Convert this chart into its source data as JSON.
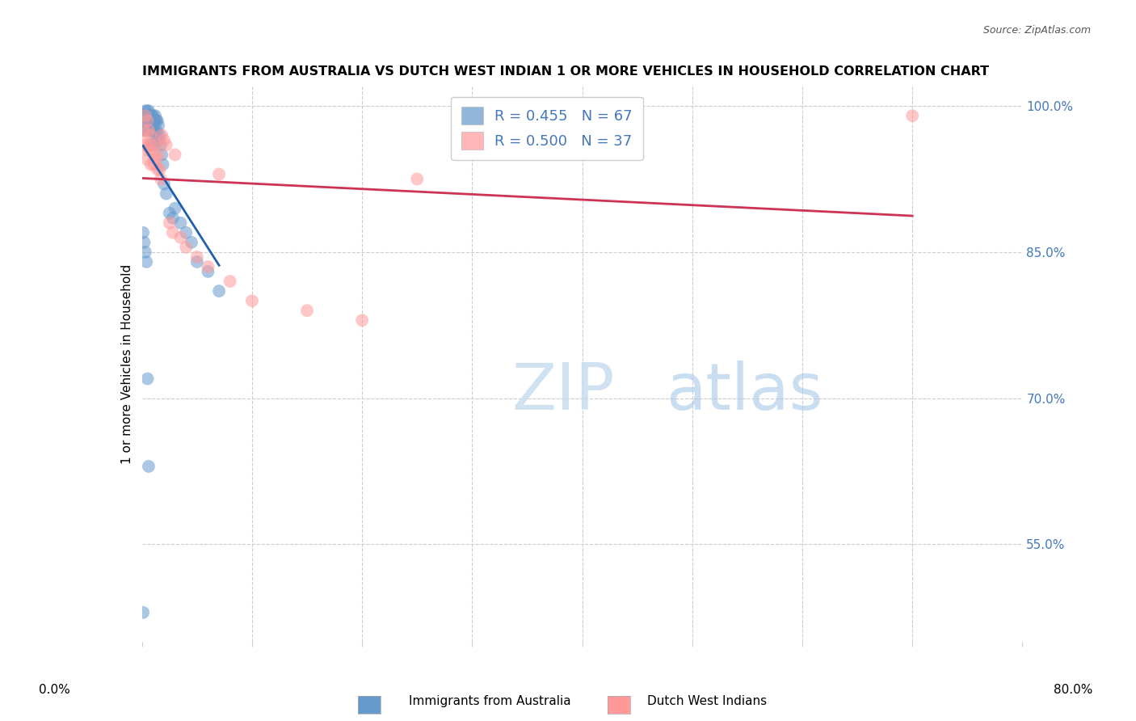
{
  "title": "IMMIGRANTS FROM AUSTRALIA VS DUTCH WEST INDIAN 1 OR MORE VEHICLES IN HOUSEHOLD CORRELATION CHART",
  "source": "Source: ZipAtlas.com",
  "ylabel": "1 or more Vehicles in Household",
  "xlim": [
    0.0,
    0.8
  ],
  "ylim": [
    0.45,
    1.02
  ],
  "yticks": [
    0.55,
    0.7,
    0.85,
    1.0
  ],
  "ytick_labels": [
    "55.0%",
    "70.0%",
    "85.0%",
    "100.0%"
  ],
  "legend1_label": "R = 0.455   N = 67",
  "legend2_label": "R = 0.500   N = 37",
  "blue_color": "#6699CC",
  "pink_color": "#FF9999",
  "blue_line_color": "#1F5FAD",
  "pink_line_color": "#CC3355",
  "australia_x": [
    0.001,
    0.001,
    0.001,
    0.002,
    0.002,
    0.002,
    0.003,
    0.003,
    0.003,
    0.003,
    0.004,
    0.004,
    0.004,
    0.005,
    0.005,
    0.005,
    0.005,
    0.006,
    0.006,
    0.006,
    0.007,
    0.007,
    0.007,
    0.007,
    0.008,
    0.008,
    0.008,
    0.009,
    0.009,
    0.009,
    0.01,
    0.01,
    0.01,
    0.01,
    0.011,
    0.011,
    0.012,
    0.012,
    0.012,
    0.013,
    0.013,
    0.014,
    0.014,
    0.015,
    0.015,
    0.016,
    0.017,
    0.018,
    0.019,
    0.02,
    0.022,
    0.025,
    0.028,
    0.03,
    0.035,
    0.04,
    0.045,
    0.05,
    0.06,
    0.07,
    0.001,
    0.002,
    0.003,
    0.004,
    0.005,
    0.006,
    0.001
  ],
  "australia_y": [
    0.99,
    0.985,
    0.975,
    0.99,
    0.985,
    0.98,
    0.995,
    0.99,
    0.985,
    0.975,
    0.99,
    0.985,
    0.98,
    0.995,
    0.99,
    0.985,
    0.975,
    0.995,
    0.99,
    0.985,
    0.99,
    0.985,
    0.975,
    0.96,
    0.99,
    0.985,
    0.975,
    0.99,
    0.985,
    0.975,
    0.99,
    0.985,
    0.975,
    0.96,
    0.985,
    0.975,
    0.99,
    0.985,
    0.97,
    0.985,
    0.975,
    0.985,
    0.97,
    0.98,
    0.965,
    0.97,
    0.96,
    0.95,
    0.94,
    0.92,
    0.91,
    0.89,
    0.885,
    0.895,
    0.88,
    0.87,
    0.86,
    0.84,
    0.83,
    0.81,
    0.87,
    0.86,
    0.85,
    0.84,
    0.72,
    0.63,
    0.48
  ],
  "dutch_x": [
    0.001,
    0.002,
    0.003,
    0.003,
    0.004,
    0.005,
    0.005,
    0.006,
    0.007,
    0.008,
    0.008,
    0.009,
    0.01,
    0.011,
    0.012,
    0.013,
    0.014,
    0.015,
    0.016,
    0.017,
    0.018,
    0.02,
    0.022,
    0.025,
    0.028,
    0.03,
    0.035,
    0.04,
    0.05,
    0.06,
    0.07,
    0.08,
    0.1,
    0.15,
    0.2,
    0.25,
    0.7
  ],
  "dutch_y": [
    0.975,
    0.965,
    0.99,
    0.96,
    0.955,
    0.985,
    0.945,
    0.975,
    0.955,
    0.97,
    0.94,
    0.96,
    0.95,
    0.94,
    0.96,
    0.945,
    0.935,
    0.95,
    0.935,
    0.925,
    0.97,
    0.965,
    0.96,
    0.88,
    0.87,
    0.95,
    0.865,
    0.855,
    0.845,
    0.835,
    0.93,
    0.82,
    0.8,
    0.79,
    0.78,
    0.925,
    0.99
  ]
}
